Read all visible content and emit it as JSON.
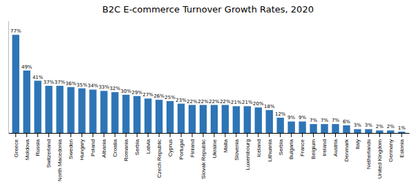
{
  "chart_data": {
    "type": "bar",
    "title": "B2C E-commerce Turnover Growth Rates, 2020",
    "categories": [
      "Greece",
      "Moldova",
      "Russia",
      "Switzerland",
      "North Macedonia",
      "Sweden",
      "Hungary",
      "Poland",
      "Albania",
      "Croatia",
      "Romania",
      "Serbia",
      "Latvia",
      "Czech Republic",
      "Cyprus",
      "Portugal",
      "Finland",
      "Slovak Republic",
      "Ukraine",
      "Malta",
      "Slovenia",
      "Luxembourg",
      "Iceland",
      "Lithuania",
      "Serbia",
      "Bulgaria",
      "France",
      "Belgium",
      "Ireland",
      "Austria",
      "Denmark",
      "Italy",
      "Netherlands",
      "United Kingdom",
      "Germany",
      "Estonia"
    ],
    "values": [
      77,
      49,
      41,
      37,
      37,
      36,
      35,
      34,
      33,
      32,
      30,
      29,
      27,
      26,
      25,
      23,
      22,
      22,
      22,
      22,
      21,
      21,
      20,
      18,
      12,
      9,
      9,
      7,
      7,
      7,
      6,
      3,
      3,
      2,
      2,
      1
    ],
    "value_labels": [
      "77%",
      "49%",
      "41%",
      "37%",
      "37%",
      "36%",
      "35%",
      "34%",
      "33%",
      "32%",
      "30%",
      "29%",
      "27%",
      "26%",
      "25%",
      "23%",
      "22%",
      "22%",
      "22%",
      "22%",
      "21%",
      "21%",
      "20%",
      "18%",
      "12%",
      "9%",
      "9%",
      "7%",
      "7%",
      "7%",
      "6%",
      "3%",
      "3%",
      "2%",
      "2%",
      "1%"
    ],
    "color": "#2E75B6",
    "ylim": [
      0,
      88
    ],
    "grid": false,
    "data_labels": true,
    "tick_labels": "x"
  }
}
